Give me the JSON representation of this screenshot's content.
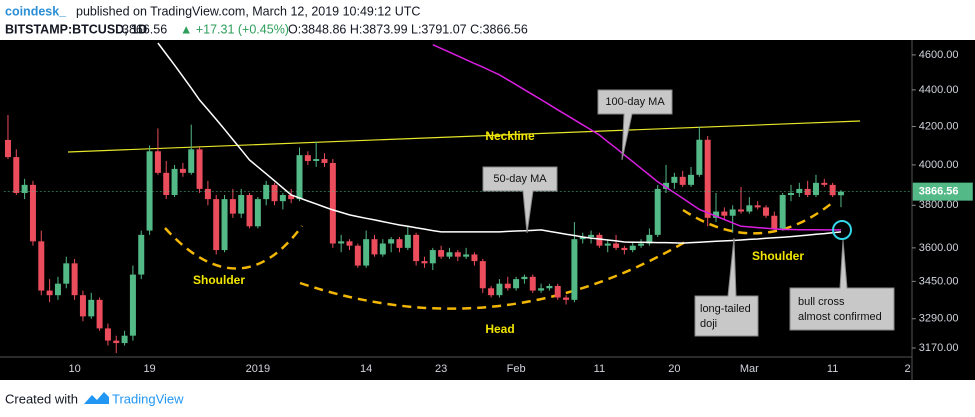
{
  "chart_data": {
    "type": "candlestick",
    "author": "coindesk_",
    "title": "published on TradingView.com, March 12, 2019 10:49:12 UTC",
    "symbol": "BITSTAMP:BTCUSD, 1D",
    "change": "▲ +17.31 (+0.45%)",
    "ohlc_text": "O:3848.86 H:3873.99 L:3791.07 C:3866.56",
    "log_scale": true,
    "grid": false,
    "up_color": "#53b987",
    "down_color": "#eb4d5c",
    "categories": [
      null,
      null,
      null,
      null,
      null,
      null,
      null,
      null,
      "10",
      null,
      null,
      null,
      null,
      null,
      null,
      null,
      null,
      "19",
      null,
      null,
      null,
      null,
      null,
      null,
      null,
      null,
      null,
      null,
      null,
      null,
      "2019",
      null,
      null,
      null,
      null,
      null,
      null,
      null,
      null,
      null,
      null,
      null,
      null,
      "14",
      null,
      null,
      null,
      null,
      null,
      null,
      null,
      null,
      "23",
      null,
      null,
      null,
      null,
      null,
      null,
      null,
      null,
      "Feb",
      null,
      null,
      null,
      null,
      null,
      null,
      null,
      null,
      null,
      "11",
      null,
      null,
      null,
      null,
      null,
      null,
      null,
      null,
      "20",
      null,
      null,
      null,
      null,
      null,
      null,
      null,
      null,
      "Mar",
      null,
      null,
      null,
      null,
      null,
      null,
      null,
      null,
      null,
      "11",
      null,
      null,
      null,
      null,
      null,
      null,
      null,
      null,
      "2"
    ],
    "open": [
      4129,
      4040,
      3860,
      3900,
      3630,
      3410,
      3390,
      3440,
      3530,
      3390,
      3300,
      3370,
      3250,
      3200,
      3190,
      3220,
      3480,
      3680,
      4070,
      3960,
      3850,
      3980,
      3960,
      4080,
      3880,
      3830,
      3590,
      3830,
      3760,
      3850,
      3700,
      3830,
      3900,
      3820,
      3850,
      3830,
      4050,
      4020,
      4030,
      4010,
      3620,
      3630,
      3610,
      3520,
      3640,
      3570,
      3620,
      3640,
      3600,
      3660,
      3540,
      3530,
      3590,
      3560,
      3580,
      3560,
      3570,
      3540,
      3420,
      3390,
      3440,
      3420,
      3460,
      3470,
      3410,
      3420,
      3430,
      3380,
      3370,
      3640,
      3650,
      3660,
      3610,
      3620,
      3600,
      3590,
      3610,
      3620,
      3660,
      3880,
      3910,
      3940,
      3900,
      3950,
      4130,
      3740,
      3770,
      3750,
      3780,
      3770,
      3800,
      3790,
      3750,
      3690,
      3850,
      3860,
      3880,
      3850,
      3910,
      3900,
      3848.86,
      null,
      null,
      null,
      null,
      null,
      null,
      null,
      null
    ],
    "high": [
      4262,
      4080,
      3930,
      3920,
      3680,
      3460,
      3470,
      3560,
      3550,
      3410,
      3400,
      3380,
      3270,
      3220,
      3240,
      3520,
      3680,
      4100,
      4190,
      4020,
      4000,
      4010,
      4210,
      4090,
      3920,
      3850,
      3850,
      3880,
      3880,
      3860,
      3840,
      3920,
      3910,
      3860,
      3880,
      4090,
      4070,
      4120,
      4060,
      4030,
      3660,
      3640,
      3620,
      3680,
      3660,
      3640,
      3650,
      3650,
      3700,
      3670,
      3560,
      3600,
      3610,
      3600,
      3590,
      3600,
      3580,
      3550,
      3430,
      3460,
      3470,
      3470,
      3480,
      3480,
      3440,
      3440,
      3440,
      3390,
      3720,
      3670,
      3680,
      3670,
      3640,
      3660,
      3610,
      3630,
      3640,
      3690,
      3900,
      4000,
      3960,
      3970,
      3990,
      4200,
      4150,
      3860,
      3790,
      3800,
      3890,
      3840,
      3820,
      3800,
      3770,
      3860,
      3900,
      3910,
      3920,
      3950,
      3930,
      3910,
      3873.99,
      null,
      null,
      null,
      null,
      null,
      null,
      null,
      null
    ],
    "low": [
      4030,
      3850,
      3830,
      3610,
      3390,
      3360,
      3370,
      3420,
      3370,
      3280,
      3290,
      3240,
      3180,
      3150,
      3180,
      3200,
      3460,
      3660,
      3950,
      3830,
      3840,
      3940,
      3950,
      3860,
      3800,
      3570,
      3580,
      3740,
      3740,
      3690,
      3690,
      3800,
      3800,
      3780,
      3810,
      3820,
      4000,
      3990,
      3990,
      3600,
      3580,
      3590,
      3510,
      3510,
      3560,
      3560,
      3580,
      3580,
      3590,
      3520,
      3510,
      3500,
      3550,
      3550,
      3540,
      3550,
      3520,
      3400,
      3380,
      3380,
      3410,
      3410,
      3440,
      3400,
      3400,
      3410,
      3370,
      3350,
      3360,
      3620,
      3620,
      3600,
      3580,
      3590,
      3570,
      3580,
      3600,
      3610,
      3650,
      3860,
      3880,
      3890,
      3890,
      3940,
      3700,
      3720,
      3730,
      3670,
      3760,
      3760,
      3780,
      3740,
      3680,
      3680,
      3820,
      3840,
      3840,
      3840,
      3890,
      3840,
      3791.07,
      null,
      null,
      null,
      null,
      null,
      null,
      null,
      null
    ],
    "close": [
      4040,
      3860,
      3900,
      3630,
      3410,
      3390,
      3440,
      3530,
      3390,
      3300,
      3370,
      3250,
      3200,
      3190,
      3220,
      3480,
      3660,
      4070,
      3960,
      3850,
      3980,
      3960,
      4080,
      3880,
      3830,
      3590,
      3830,
      3760,
      3850,
      3700,
      3830,
      3900,
      3820,
      3850,
      3830,
      4050,
      4020,
      4030,
      4010,
      3620,
      3630,
      3610,
      3520,
      3640,
      3570,
      3620,
      3640,
      3600,
      3660,
      3540,
      3530,
      3590,
      3560,
      3580,
      3560,
      3570,
      3540,
      3420,
      3390,
      3440,
      3420,
      3460,
      3470,
      3410,
      3420,
      3430,
      3380,
      3370,
      3640,
      3650,
      3660,
      3610,
      3620,
      3600,
      3590,
      3610,
      3620,
      3660,
      3880,
      3910,
      3940,
      3900,
      3950,
      4130,
      3740,
      3770,
      3750,
      3780,
      3770,
      3800,
      3790,
      3750,
      3690,
      3850,
      3860,
      3880,
      3850,
      3910,
      3900,
      3849,
      3866.56,
      null,
      null,
      null,
      null,
      null,
      null,
      null,
      null
    ],
    "series": [
      {
        "name": "50-day MA",
        "color": "#ffffff",
        "values": [
          null,
          null,
          null,
          null,
          null,
          null,
          null,
          null,
          null,
          null,
          null,
          null,
          null,
          null,
          null,
          null,
          null,
          null,
          4670,
          4605,
          4540,
          4475,
          4410,
          4344,
          4291,
          4238,
          4185,
          4131,
          4078,
          4025,
          3990,
          3955,
          3920,
          3885,
          3850,
          3836,
          3821,
          3807,
          3792,
          3778,
          3766,
          3754,
          3746,
          3738,
          3730,
          3722,
          3714,
          3706,
          3700,
          3693,
          3687,
          3680,
          3674,
          3674,
          3674,
          3674,
          3674,
          3674,
          3674,
          3674,
          3676,
          3678,
          3679,
          3681,
          3683,
          3676,
          3670,
          3663,
          3657,
          3650,
          3645,
          3641,
          3636,
          3632,
          3627,
          3626,
          3626,
          3625,
          3624,
          3624,
          3623,
          3622,
          3624,
          3626,
          3628,
          3630,
          3632,
          3634,
          3636,
          3639,
          3641,
          3644,
          3647,
          3649,
          3652,
          3655,
          3659,
          3663,
          3666,
          3670,
          3674,
          null,
          null,
          null,
          null,
          null,
          null,
          null,
          null
        ]
      },
      {
        "name": "100-day MA",
        "color": "#d91ee0",
        "values": [
          null,
          null,
          null,
          null,
          null,
          null,
          null,
          null,
          null,
          null,
          null,
          null,
          null,
          null,
          null,
          null,
          null,
          null,
          null,
          null,
          null,
          null,
          null,
          null,
          null,
          null,
          null,
          null,
          null,
          null,
          null,
          null,
          null,
          null,
          null,
          null,
          null,
          null,
          null,
          null,
          null,
          null,
          null,
          null,
          null,
          null,
          null,
          null,
          null,
          null,
          null,
          4660,
          4638,
          4616,
          4594,
          4572,
          4550,
          4529,
          4507,
          4485,
          4457,
          4429,
          4401,
          4373,
          4346,
          4318,
          4290,
          4263,
          4236,
          4209,
          4182,
          4155,
          4120,
          4086,
          4051,
          4017,
          3983,
          3949,
          3915,
          3888,
          3861,
          3834,
          3807,
          3780,
          3764,
          3748,
          3732,
          3716,
          3700,
          3697,
          3694,
          3691,
          3688,
          3685,
          3685,
          3684,
          3684,
          3684,
          3683,
          3683,
          3683,
          null,
          null,
          null,
          null,
          null,
          null,
          null,
          null
        ]
      }
    ],
    "ylim": [
      3142,
      4676
    ],
    "yticks": [
      {
        "value": 4600,
        "label": "4600.00"
      },
      {
        "value": 4400,
        "label": "4400.00"
      },
      {
        "value": 4200,
        "label": "4200.00"
      },
      {
        "value": 4000,
        "label": "4000.00"
      },
      {
        "value": 3800,
        "label": "3800.00"
      },
      {
        "value": 3600,
        "label": "3600.00"
      },
      {
        "value": 3450,
        "label": "3450.00"
      },
      {
        "value": 3290,
        "label": "3290.00"
      },
      {
        "value": 3170,
        "label": "3170.00"
      }
    ],
    "annotations": {
      "neckline": "Neckline",
      "left_shoulder": "Shoulder",
      "right_shoulder": "Shoulder",
      "head": "Head",
      "doji": [
        "long-tailed",
        "doji"
      ],
      "bull_cross": [
        "bull cross",
        "almost confirmed"
      ]
    }
  },
  "footer": {
    "text": "Created with",
    "brand": "TradingView"
  }
}
